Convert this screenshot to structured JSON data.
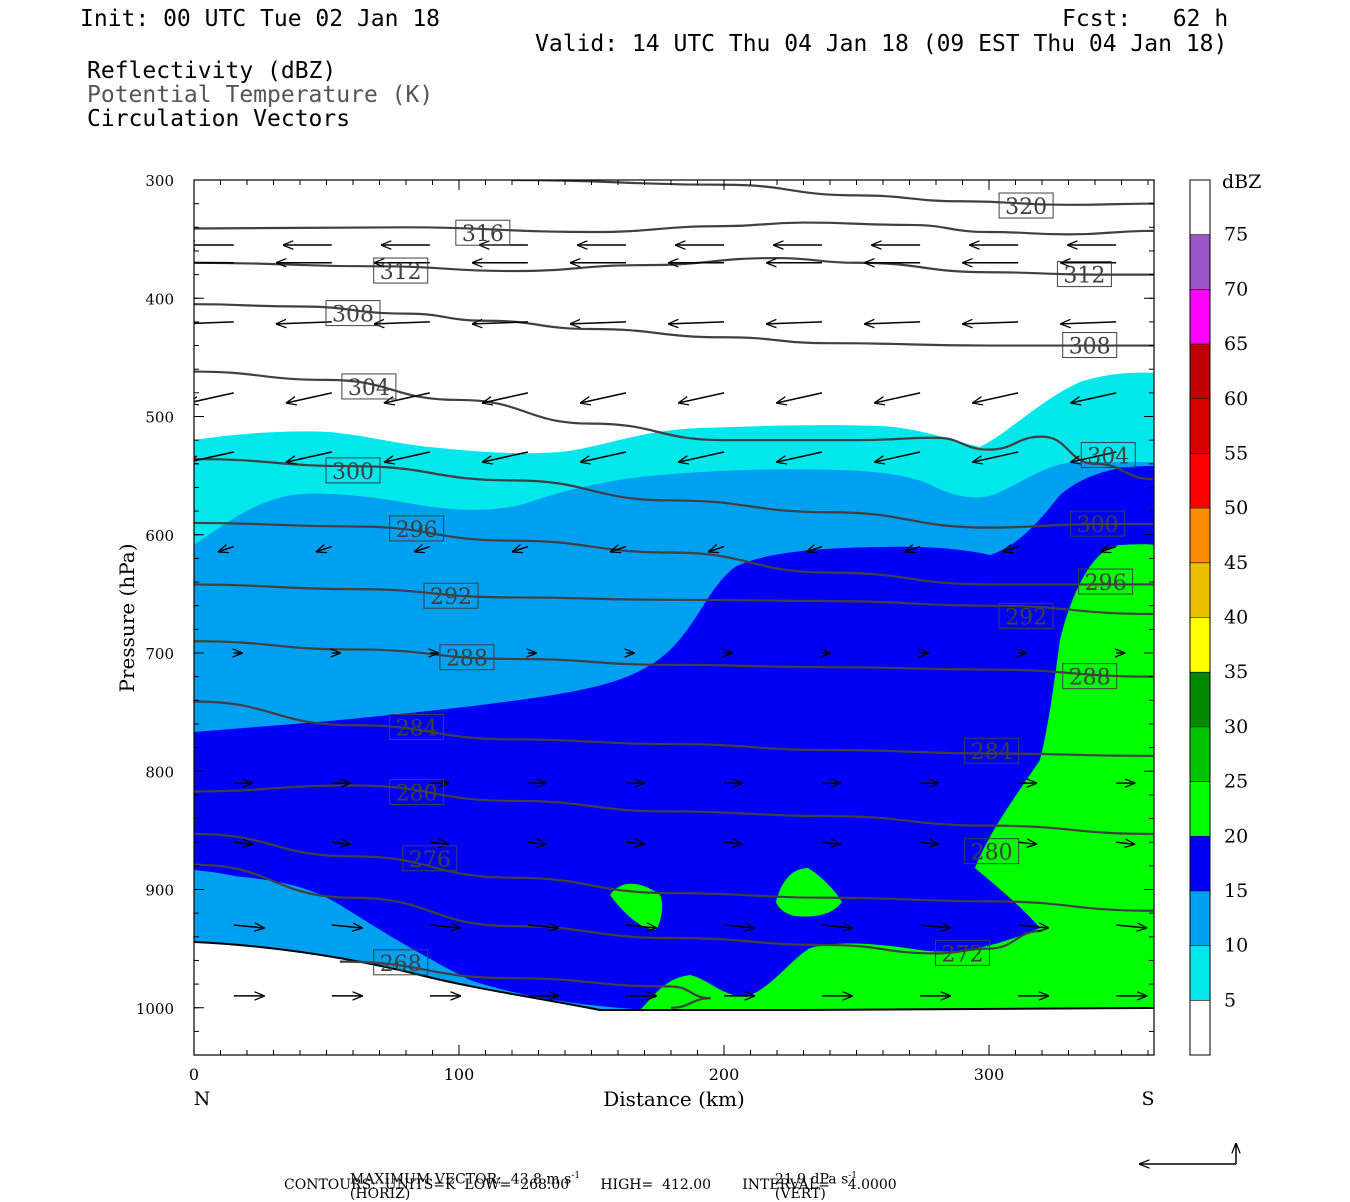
{
  "header": {
    "init": "Init: 00 UTC Tue 02 Jan 18",
    "fcst": "Fcst:   62 h",
    "valid": "Valid: 14 UTC Thu 04 Jan 18 (09 EST Thu 04 Jan 18)",
    "legend_lines": [
      "Reflectivity (dBZ)",
      "Potential Temperature (K)",
      "Circulation Vectors"
    ]
  },
  "footer": {
    "max_vector": "MAXIMUM VECTOR:  43.8 m s",
    "horiz_tail": "(HORIZ)",
    "vert_val": "21.9 dPa s",
    "vert_tail": "(VERT)",
    "exponent": "-1",
    "contours": "CONTOURS:  UNITS=K  LOW=  268.00       HIGH=  412.00       INTERVAL=    4.0000"
  },
  "chart_data": {
    "type": "cross-section",
    "xlabel": "Distance (km)",
    "ylabel": "Pressure (hPa)",
    "xlim": [
      0,
      362
    ],
    "ylim": [
      1040,
      300
    ],
    "x_ticks": [
      0,
      100,
      200,
      300
    ],
    "y_ticks": [
      300,
      400,
      500,
      600,
      700,
      800,
      900,
      1000
    ],
    "left_end_label": "N",
    "right_end_label": "S",
    "colorbar": {
      "unit": "dBZ",
      "levels": [
        5,
        10,
        15,
        20,
        25,
        30,
        35,
        40,
        45,
        50,
        55,
        60,
        65,
        70,
        75
      ],
      "colors": [
        "#ffffff",
        "#00e8ec",
        "#00a0f0",
        "#0000f6",
        "#00ff00",
        "#00c400",
        "#008800",
        "#ffff00",
        "#e8c000",
        "#ff8c00",
        "#ff0000",
        "#d60000",
        "#c00000",
        "#ff00ff",
        "#9a55c8",
        "#ffffff"
      ]
    },
    "reflectivity_colors": {
      "dbz5": "#00e8ec",
      "dbz10": "#00a0f0",
      "dbz15": "#0000f6",
      "dbz20": "#00ff00"
    },
    "theta_contours": [
      {
        "label": "320",
        "pts": [
          [
            120,
            300
          ],
          [
            200,
            304
          ],
          [
            250,
            313
          ],
          [
            290,
            318
          ],
          [
            330,
            321
          ],
          [
            362,
            320
          ]
        ],
        "labels": [
          [
            314,
            322
          ]
        ]
      },
      {
        "label": "316",
        "pts": [
          [
            0,
            341
          ],
          [
            80,
            340
          ],
          [
            150,
            344
          ],
          [
            200,
            339
          ],
          [
            230,
            336
          ],
          [
            270,
            338
          ],
          [
            300,
            344
          ],
          [
            330,
            346
          ],
          [
            362,
            343
          ]
        ],
        "labels": [
          [
            109,
            345
          ]
        ]
      },
      {
        "label": "312",
        "pts": [
          [
            0,
            370
          ],
          [
            70,
            373
          ],
          [
            120,
            377
          ],
          [
            170,
            372
          ],
          [
            220,
            366
          ],
          [
            250,
            370
          ],
          [
            300,
            378
          ],
          [
            340,
            380
          ],
          [
            362,
            380
          ]
        ],
        "labels": [
          [
            78,
            377
          ],
          [
            336,
            380
          ]
        ]
      },
      {
        "label": "308",
        "pts": [
          [
            0,
            405
          ],
          [
            40,
            407
          ],
          [
            80,
            413
          ],
          [
            110,
            419
          ],
          [
            150,
            426
          ],
          [
            200,
            433
          ],
          [
            240,
            438
          ],
          [
            300,
            440
          ],
          [
            362,
            440
          ]
        ],
        "labels": [
          [
            60,
            413
          ],
          [
            338,
            440
          ]
        ]
      },
      {
        "label": "304",
        "pts": [
          [
            0,
            462
          ],
          [
            50,
            469
          ],
          [
            100,
            486
          ],
          [
            150,
            506
          ],
          [
            200,
            520
          ],
          [
            250,
            520
          ],
          [
            280,
            518
          ],
          [
            300,
            528
          ],
          [
            320,
            517
          ],
          [
            340,
            540
          ],
          [
            362,
            553
          ]
        ],
        "labels": [
          [
            66,
            475
          ],
          [
            345,
            533
          ]
        ]
      },
      {
        "label": "300",
        "pts": [
          [
            0,
            536
          ],
          [
            60,
            542
          ],
          [
            120,
            554
          ],
          [
            180,
            571
          ],
          [
            240,
            581
          ],
          [
            300,
            594
          ],
          [
            340,
            591
          ],
          [
            362,
            591
          ]
        ],
        "labels": [
          [
            60,
            546
          ],
          [
            341,
            591
          ]
        ]
      },
      {
        "label": "296",
        "pts": [
          [
            0,
            590
          ],
          [
            60,
            593
          ],
          [
            120,
            605
          ],
          [
            180,
            615
          ],
          [
            240,
            632
          ],
          [
            300,
            642
          ],
          [
            362,
            642
          ]
        ],
        "labels": [
          [
            84,
            595
          ],
          [
            344,
            640
          ]
        ]
      },
      {
        "label": "292",
        "pts": [
          [
            0,
            642
          ],
          [
            60,
            646
          ],
          [
            120,
            653
          ],
          [
            180,
            655
          ],
          [
            240,
            656
          ],
          [
            300,
            660
          ],
          [
            362,
            667
          ]
        ],
        "labels": [
          [
            97,
            652
          ],
          [
            314,
            669
          ]
        ]
      },
      {
        "label": "288",
        "pts": [
          [
            0,
            690
          ],
          [
            60,
            697
          ],
          [
            120,
            705
          ],
          [
            180,
            710
          ],
          [
            240,
            712
          ],
          [
            300,
            714
          ],
          [
            362,
            720
          ]
        ],
        "labels": [
          [
            103,
            704
          ],
          [
            338,
            720
          ]
        ]
      },
      {
        "label": "284",
        "pts": [
          [
            0,
            741
          ],
          [
            60,
            761
          ],
          [
            120,
            773
          ],
          [
            180,
            777
          ],
          [
            240,
            782
          ],
          [
            300,
            785
          ],
          [
            362,
            787
          ]
        ],
        "labels": [
          [
            84,
            763
          ],
          [
            301,
            783
          ]
        ]
      },
      {
        "label": "280",
        "pts": [
          [
            0,
            817
          ],
          [
            60,
            812
          ],
          [
            120,
            825
          ],
          [
            180,
            834
          ],
          [
            240,
            838
          ],
          [
            300,
            846
          ],
          [
            362,
            853
          ]
        ],
        "labels": [
          [
            84,
            818
          ],
          [
            301,
            868
          ]
        ]
      },
      {
        "label": "276",
        "pts": [
          [
            0,
            853
          ],
          [
            60,
            872
          ],
          [
            120,
            890
          ],
          [
            180,
            903
          ],
          [
            240,
            907
          ],
          [
            300,
            910
          ],
          [
            362,
            918
          ]
        ],
        "labels": [
          [
            89,
            874
          ]
        ]
      },
      {
        "label": "272",
        "pts": [
          [
            0,
            879
          ],
          [
            60,
            907
          ],
          [
            120,
            931
          ],
          [
            180,
            941
          ],
          [
            240,
            947
          ],
          [
            280,
            954
          ],
          [
            300,
            950
          ],
          [
            320,
            935
          ]
        ],
        "labels": [
          [
            290,
            954
          ]
        ]
      },
      {
        "label": "268",
        "pts": [
          [
            55,
            961
          ],
          [
            120,
            975
          ],
          [
            180,
            982
          ],
          [
            195,
            992
          ],
          [
            180,
            1000
          ]
        ],
        "labels": [
          [
            78,
            962
          ]
        ]
      }
    ],
    "max_vector": {
      "horiz": 43.8,
      "horiz_unit": "m s-1",
      "vert": 21.9,
      "vert_unit": "dPa s-1"
    },
    "contour_info": {
      "units": "K",
      "low": 268.0,
      "high": 412.0,
      "interval": 4.0
    }
  }
}
